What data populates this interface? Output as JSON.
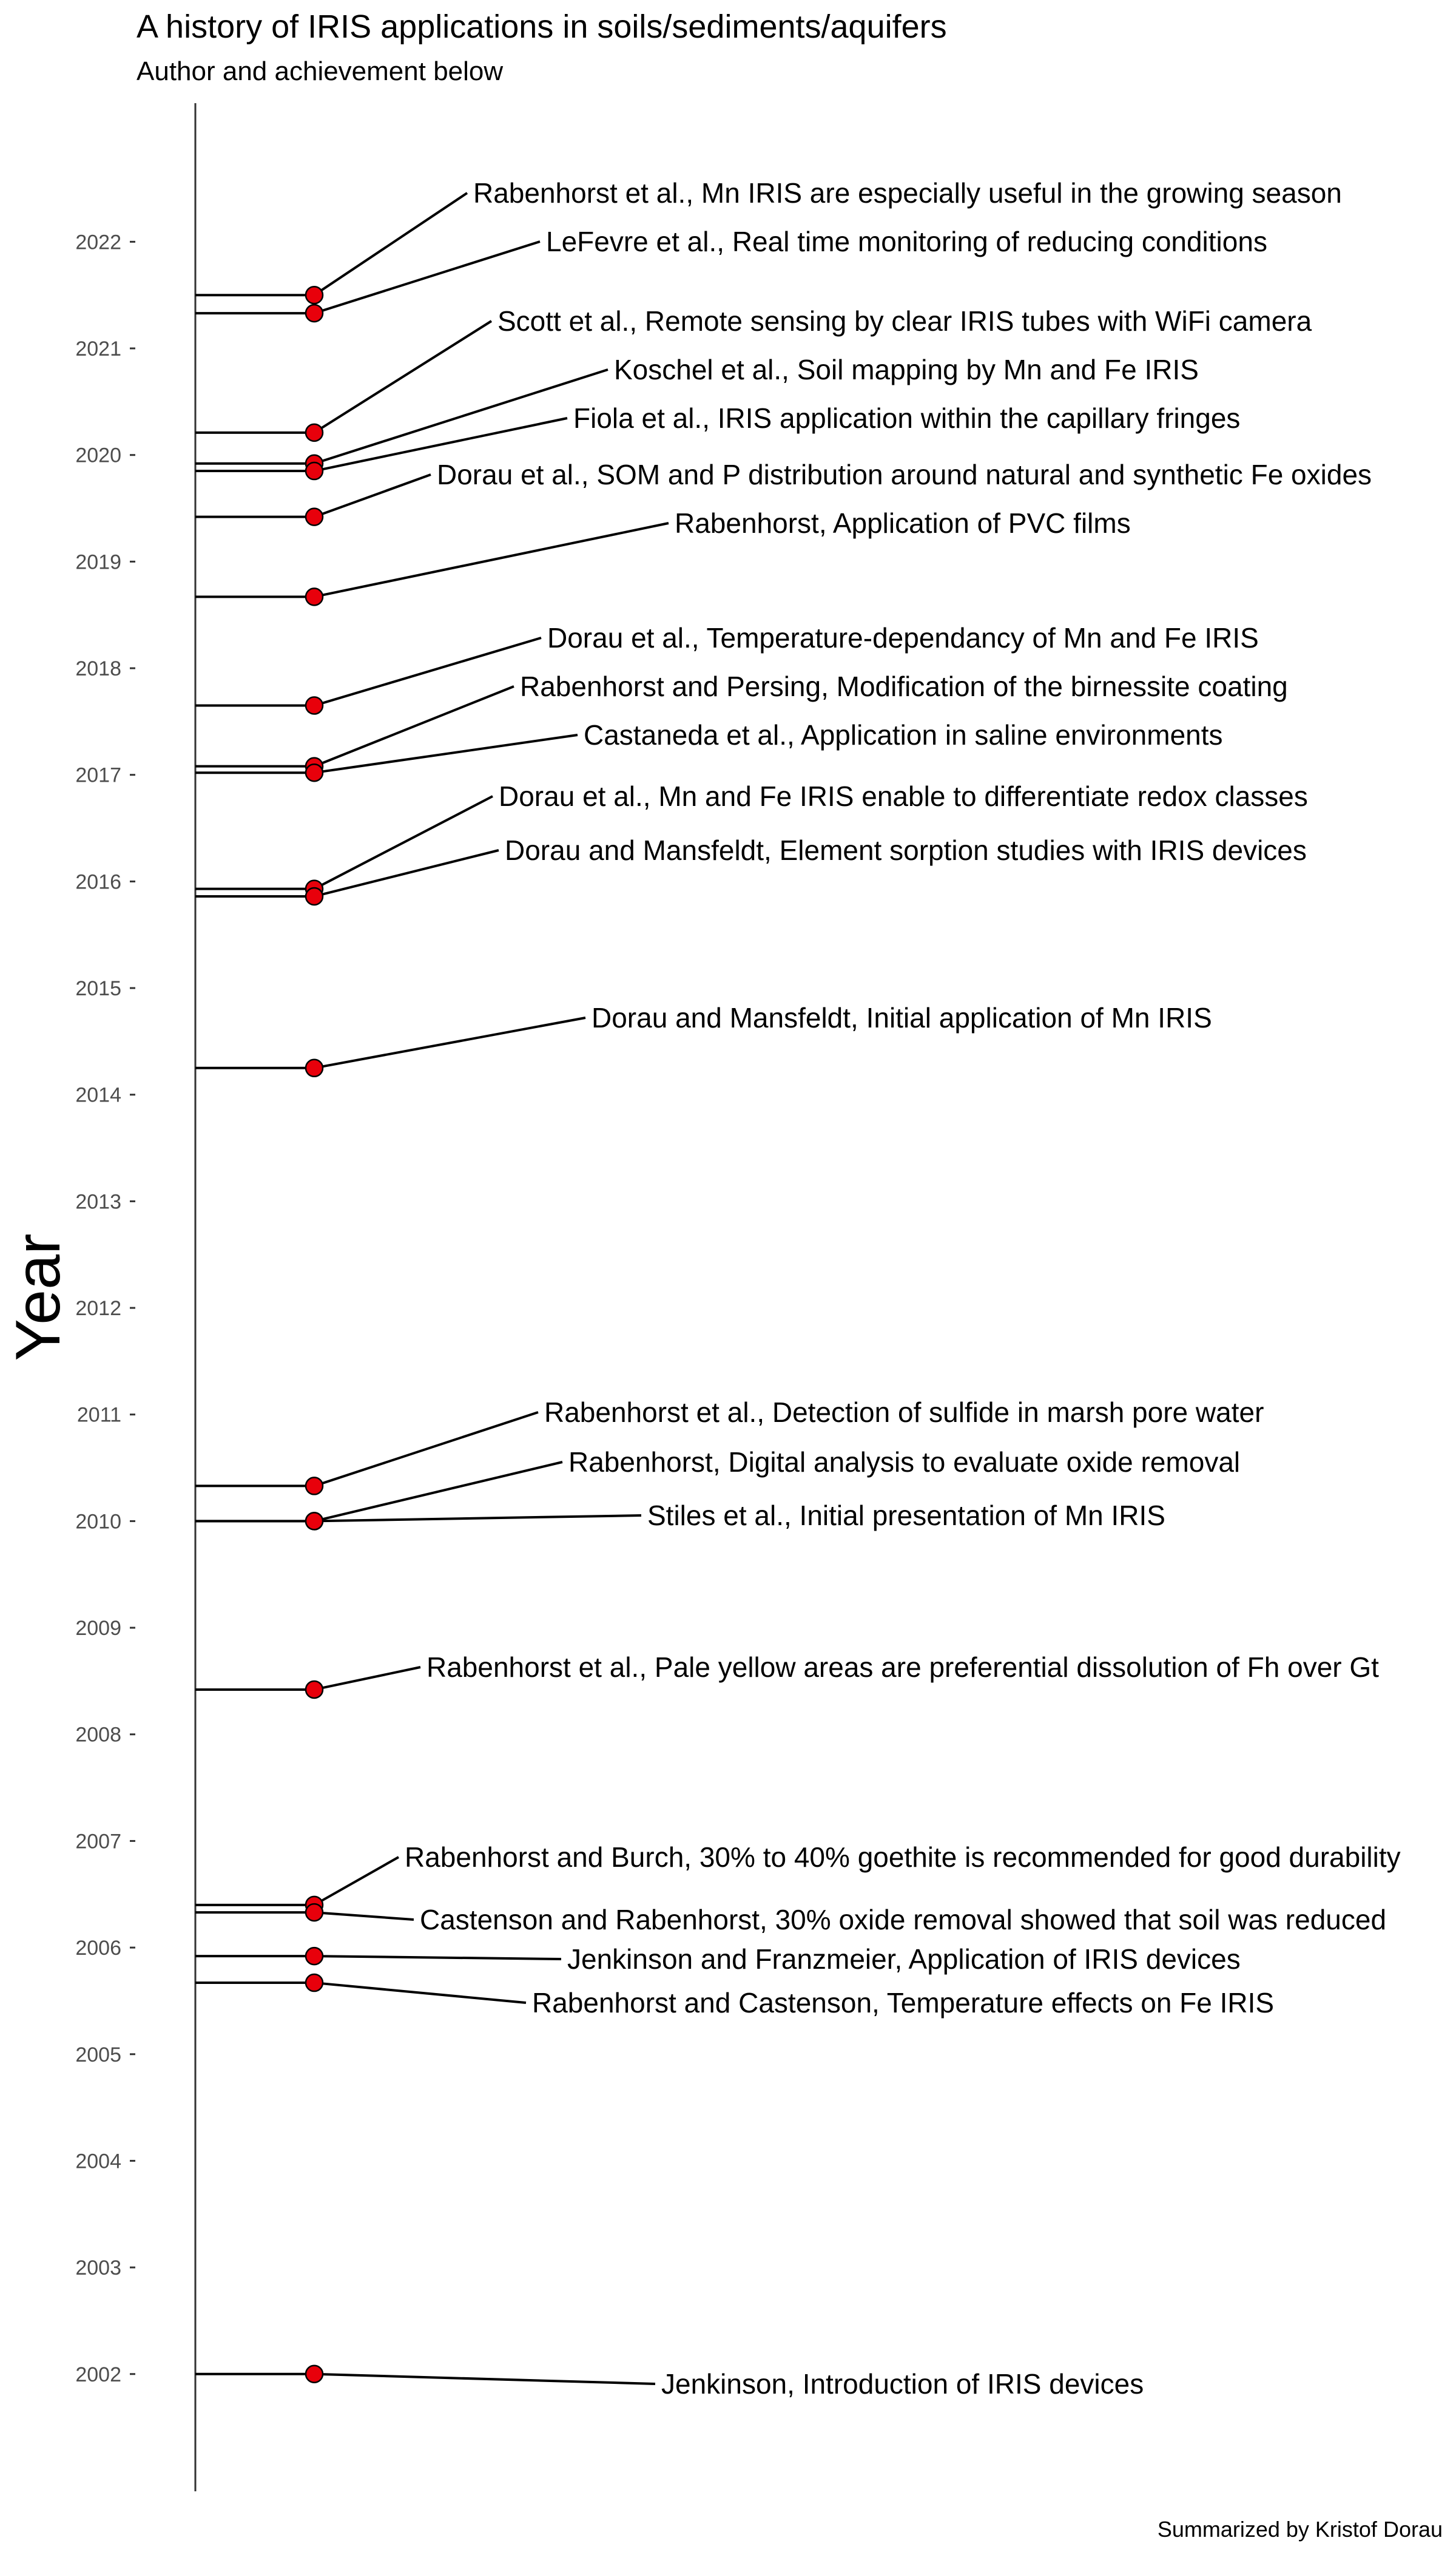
{
  "chart_data": {
    "type": "scatter",
    "title": "A history of IRIS applications in soils/sediments/aquifers",
    "subtitle": "Author and achievement below",
    "ylabel": "Year",
    "xlabel": "",
    "caption": "Summarized by Kristof Dorau",
    "ylim": [
      2000.9,
      2023.3
    ],
    "yticks": [
      2002,
      2003,
      2004,
      2005,
      2006,
      2007,
      2008,
      2009,
      2010,
      2011,
      2012,
      2013,
      2014,
      2015,
      2016,
      2017,
      2018,
      2019,
      2020,
      2021,
      2022
    ],
    "grid": false,
    "legend": "none",
    "point_color": "#e8000b",
    "line_color": "#000000",
    "events": [
      {
        "year": 2021.5,
        "label": "Rabenhorst et al., Mn IRIS are especially useful in the growing season"
      },
      {
        "year": 2021.33,
        "label": "LeFevre et al., Real time monitoring of reducing conditions"
      },
      {
        "year": 2020.21,
        "label": "Scott et al., Remote sensing by clear IRIS tubes with WiFi camera"
      },
      {
        "year": 2019.92,
        "label": "Koschel et al., Soil mapping by Mn and Fe IRIS"
      },
      {
        "year": 2019.85,
        "label": "Fiola et al., IRIS application within the capillary fringes"
      },
      {
        "year": 2019.42,
        "label": "Dorau et al., SOM and P distribution around natural and synthetic Fe oxides"
      },
      {
        "year": 2018.67,
        "label": "Rabenhorst, Application of PVC films"
      },
      {
        "year": 2017.65,
        "label": "Dorau et al., Temperature-dependancy of Mn and Fe IRIS"
      },
      {
        "year": 2017.08,
        "label": "Rabenhorst and Persing, Modification of the birnessite coating"
      },
      {
        "year": 2017.02,
        "label": "Castaneda et al., Application in saline environments"
      },
      {
        "year": 2015.93,
        "label": "Dorau et al., Mn and Fe IRIS enable to differentiate redox classes"
      },
      {
        "year": 2015.86,
        "label": "Dorau and Mansfeldt, Element sorption studies with IRIS devices"
      },
      {
        "year": 2014.25,
        "label": "Dorau and Mansfeldt, Initial application of  Mn IRIS"
      },
      {
        "year": 2010.33,
        "label": "Rabenhorst et al., Detection of sulfide in marsh pore water"
      },
      {
        "year": 2010.0,
        "label": "Rabenhorst, Digital analysis to evaluate oxide removal"
      },
      {
        "year": 2010.0,
        "label": "Stiles et al., Initial presentation of Mn IRIS"
      },
      {
        "year": 2008.42,
        "label": "Rabenhorst et al., Pale yellow areas are preferential dissolution of Fh over Gt"
      },
      {
        "year": 2006.4,
        "label": "Rabenhorst and Burch, 30% to 40% goethite is recommended for good durability"
      },
      {
        "year": 2006.33,
        "label": "Castenson and Rabenhorst, 30% oxide removal showed that soil was reduced"
      },
      {
        "year": 2005.92,
        "label": "Jenkinson and Franzmeier, Application of IRIS devices"
      },
      {
        "year": 2005.67,
        "label": "Rabenhorst and Castenson, Temperature effects on Fe IRIS"
      },
      {
        "year": 2002.0,
        "label": "Jenkinson, Introduction of IRIS devices"
      }
    ]
  }
}
